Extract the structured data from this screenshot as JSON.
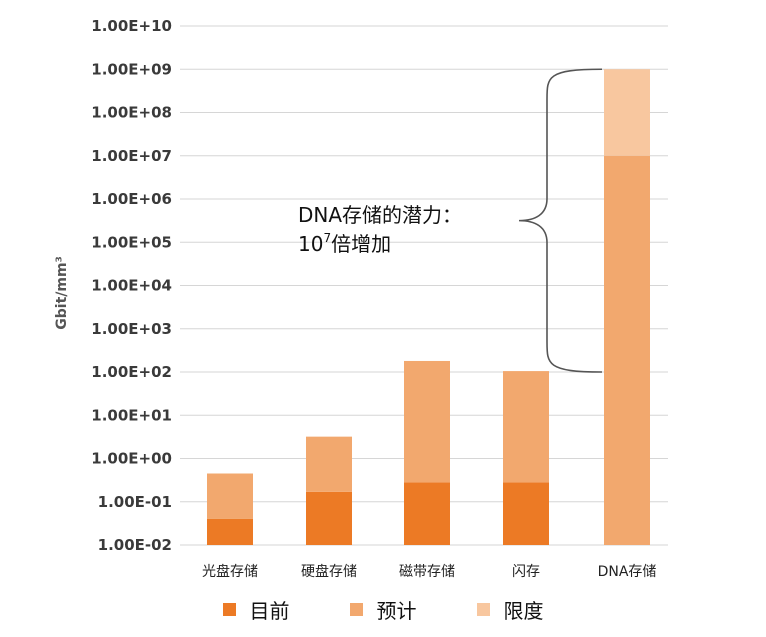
{
  "chart_data": {
    "type": "bar",
    "stacked": true,
    "log_scale": true,
    "ylabel": "Gbit/mm³",
    "ylim": [
      0.01,
      10000000000
    ],
    "y_ticks": [
      "1.00E-02",
      "1.00E-01",
      "1.00E+00",
      "1.00E+01",
      "1.00E+02",
      "1.00E+03",
      "1.00E+04",
      "1.00E+05",
      "1.00E+06",
      "1.00E+07",
      "1.00E+08",
      "1.00E+09",
      "1.00E+10"
    ],
    "categories": [
      "光盘存储",
      "硬盘存储",
      "磁带存储",
      "闪存",
      "DNA存储"
    ],
    "series": [
      {
        "name": "目前",
        "color": "#ec7a25",
        "values": [
          0.04,
          0.17,
          0.28,
          0.28,
          null
        ]
      },
      {
        "name": "预计",
        "color": "#f2a86e",
        "values": [
          0.45,
          3.2,
          180,
          105,
          10000000
        ]
      },
      {
        "name": "限度",
        "color": "#f8c79f",
        "values": [
          null,
          null,
          null,
          null,
          1000000000
        ]
      }
    ],
    "grid": true,
    "legend_position": "bottom",
    "annotation": {
      "line1": "DNA存储的潜力：",
      "line2_base": "10",
      "line2_sup": "7",
      "line2_rest": "倍增加",
      "brace_from": 100,
      "brace_to": 1000000000
    }
  },
  "legend": [
    {
      "label": "目前",
      "color": "#ec7a25"
    },
    {
      "label": "预计",
      "color": "#f2a86e"
    },
    {
      "label": "限度",
      "color": "#f8c79f"
    }
  ]
}
